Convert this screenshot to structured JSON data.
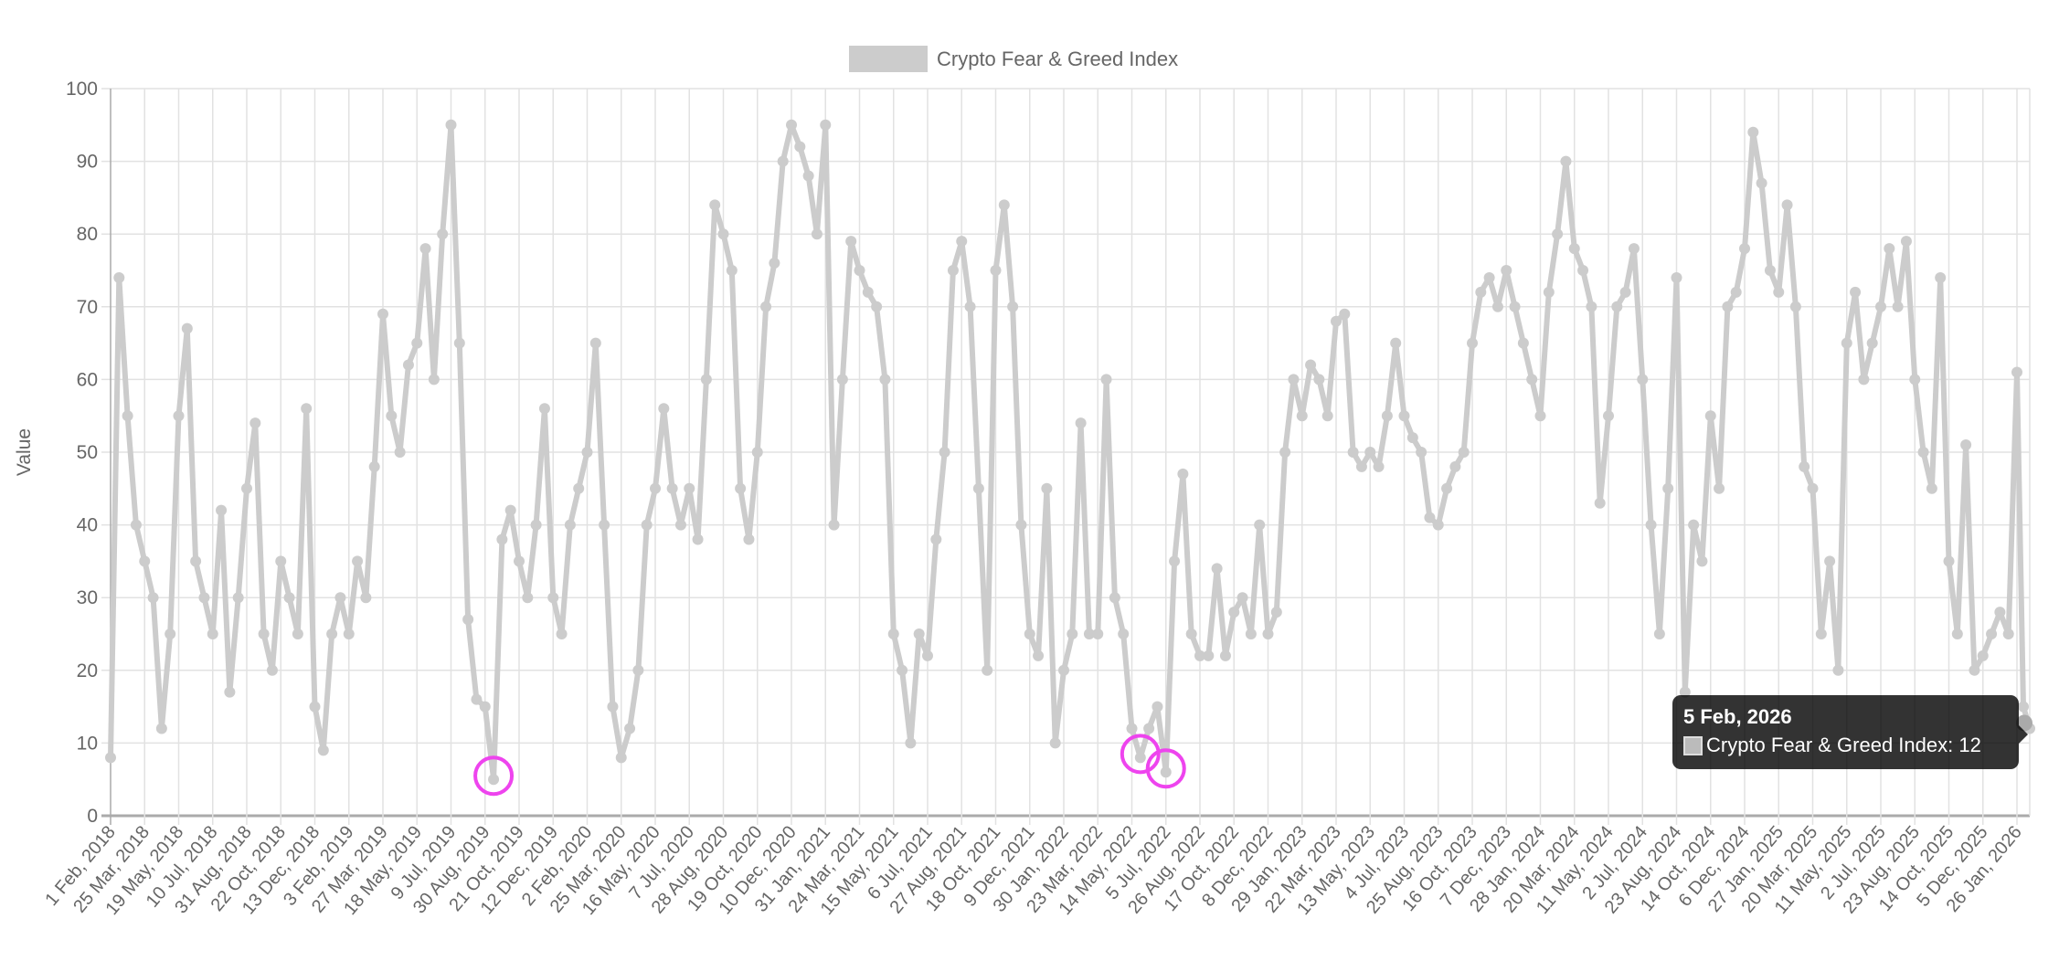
{
  "chart_data": {
    "type": "line",
    "legend": {
      "label": "Crypto Fear & Greed Index",
      "placement": "top",
      "color": "#cccccc"
    },
    "ylabel": "Value",
    "ylim": [
      0,
      100
    ],
    "yticks": [
      0,
      10,
      20,
      30,
      40,
      50,
      60,
      70,
      80,
      90,
      100
    ],
    "grid": true,
    "series_color": "#cccccc",
    "highlight_color": "#ee44ee",
    "x_labels": [
      "1 Feb, 2018",
      "25 Mar, 2018",
      "19 May, 2018",
      "10 Jul, 2018",
      "31 Aug, 2018",
      "22 Oct, 2018",
      "13 Dec, 2018",
      "3 Feb, 2019",
      "27 Mar, 2019",
      "18 May, 2019",
      "9 Jul, 2019",
      "30 Aug, 2019",
      "21 Oct, 2019",
      "12 Dec, 2019",
      "2 Feb, 2020",
      "25 Mar, 2020",
      "16 May, 2020",
      "7 Jul, 2020",
      "28 Aug, 2020",
      "19 Oct, 2020",
      "10 Dec, 2020",
      "31 Jan, 2021",
      "24 Mar, 2021",
      "15 May, 2021",
      "6 Jul, 2021",
      "27 Aug, 2021",
      "18 Oct, 2021",
      "9 Dec, 2021",
      "30 Jan, 2022",
      "23 Mar, 2022",
      "14 May, 2022",
      "5 Jul, 2022",
      "26 Aug, 2022",
      "17 Oct, 2022",
      "8 Dec, 2022",
      "29 Jan, 2023",
      "22 Mar, 2023",
      "13 May, 2023",
      "4 Jul, 2023",
      "25 Aug, 2023",
      "16 Oct, 2023",
      "7 Dec, 2023",
      "28 Jan, 2024",
      "20 Mar, 2024",
      "11 May, 2024",
      "2 Jul, 2024",
      "23 Aug, 2024",
      "14 Oct, 2024",
      "6 Dec, 2024",
      "27 Jan, 2025",
      "20 Mar, 2025",
      "11 May, 2025",
      "2 Jul, 2025",
      "23 Aug, 2025",
      "14 Oct, 2025",
      "5 Dec, 2025",
      "26 Jan, 2026"
    ],
    "values_by_interval": [
      [
        8,
        74,
        55,
        40
      ],
      [
        35,
        30,
        12,
        25
      ],
      [
        55,
        67,
        35,
        30
      ],
      [
        25,
        42,
        17,
        30
      ],
      [
        45,
        54,
        25,
        20
      ],
      [
        35,
        30,
        25,
        56
      ],
      [
        15,
        9,
        25,
        30
      ],
      [
        25,
        35,
        30,
        48
      ],
      [
        69,
        55,
        50,
        62
      ],
      [
        65,
        78,
        60,
        80
      ],
      [
        95,
        65,
        27,
        16
      ],
      [
        15,
        5,
        38,
        42
      ],
      [
        35,
        30,
        40,
        56
      ],
      [
        30,
        25,
        40,
        45
      ],
      [
        50,
        65,
        40,
        15
      ],
      [
        8,
        12,
        20,
        40
      ],
      [
        45,
        56,
        45,
        40
      ],
      [
        45,
        38,
        60,
        84
      ],
      [
        80,
        75,
        45,
        38
      ],
      [
        50,
        70,
        76,
        90
      ],
      [
        95,
        92,
        88,
        80
      ],
      [
        95,
        40,
        60,
        79
      ],
      [
        75,
        72,
        70,
        60
      ],
      [
        25,
        20,
        10,
        25
      ],
      [
        22,
        38,
        50,
        75
      ],
      [
        79,
        70,
        45,
        20
      ],
      [
        75,
        84,
        70,
        40
      ],
      [
        25,
        22,
        45,
        10
      ],
      [
        20,
        25,
        54,
        25
      ],
      [
        25,
        60,
        30,
        25
      ],
      [
        12,
        8,
        12,
        15
      ],
      [
        6,
        35,
        47,
        25
      ],
      [
        22,
        22,
        34,
        22
      ],
      [
        28,
        30,
        25,
        40
      ],
      [
        25,
        28,
        50,
        60
      ],
      [
        55,
        62,
        60,
        55
      ],
      [
        68,
        69,
        50,
        48
      ],
      [
        50,
        48,
        55,
        65
      ],
      [
        55,
        52,
        50,
        41
      ],
      [
        40,
        45,
        48,
        50
      ],
      [
        65,
        72,
        74,
        70
      ],
      [
        75,
        70,
        65,
        60
      ],
      [
        55,
        72,
        80,
        90
      ],
      [
        78,
        75,
        70,
        43
      ],
      [
        55,
        70,
        72,
        78
      ],
      [
        60,
        40,
        25,
        45
      ],
      [
        74,
        17,
        40,
        35
      ],
      [
        55,
        45,
        70,
        72
      ],
      [
        78,
        94,
        87,
        75
      ],
      [
        72,
        84,
        70,
        48
      ],
      [
        45,
        25,
        35,
        20
      ],
      [
        65,
        72,
        60,
        65
      ],
      [
        70,
        78,
        70,
        79
      ],
      [
        60,
        50,
        45,
        74
      ],
      [
        35,
        25,
        51,
        20
      ],
      [
        22,
        25,
        28,
        25
      ],
      [
        61,
        15,
        12
      ]
    ],
    "highlighted_lows": [
      {
        "date_near": "Feb 2018",
        "value": 8
      },
      {
        "date_near": "Sep 2019",
        "value": 5
      },
      {
        "date_near": "Jun 2022",
        "value": 6
      }
    ]
  },
  "tooltip": {
    "title": "5 Feb, 2026",
    "body": "Crypto Fear & Greed Index: 12",
    "value": 12
  }
}
